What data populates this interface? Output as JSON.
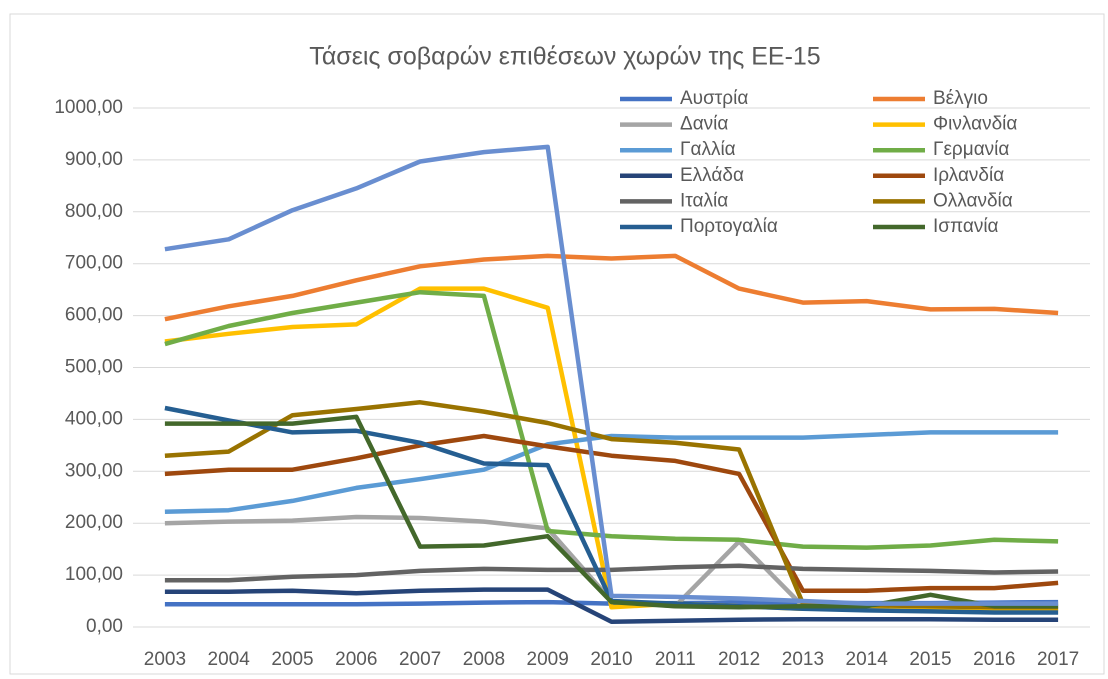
{
  "chart_data": {
    "type": "line",
    "title": "Τάσεις σοβαρών επιθέσεων χωρών της ΕΕ-15",
    "categories": [
      "2003",
      "2004",
      "2005",
      "2006",
      "2007",
      "2008",
      "2009",
      "2010",
      "2011",
      "2012",
      "2013",
      "2014",
      "2015",
      "2016",
      "2017"
    ],
    "ylim": [
      0,
      1000
    ],
    "yticks": [
      {
        "value": 0,
        "label": "0,00"
      },
      {
        "value": 100,
        "label": "100,00"
      },
      {
        "value": 200,
        "label": "200,00"
      },
      {
        "value": 300,
        "label": "300,00"
      },
      {
        "value": 400,
        "label": "400,00"
      },
      {
        "value": 500,
        "label": "500,00"
      },
      {
        "value": 600,
        "label": "600,00"
      },
      {
        "value": 700,
        "label": "700,00"
      },
      {
        "value": 800,
        "label": "800,00"
      },
      {
        "value": 900,
        "label": "900,00"
      },
      {
        "value": 1000,
        "label": "1000,00"
      }
    ],
    "grid": true,
    "series": [
      {
        "name": "Αυστρία",
        "color": "#4472c4",
        "values": [
          44,
          44,
          44,
          44,
          45,
          47,
          48,
          45,
          46,
          47,
          46,
          46,
          46,
          47,
          48
        ]
      },
      {
        "name": "Βέλγιο",
        "color": "#ed7d31",
        "values": [
          593,
          618,
          638,
          668,
          695,
          708,
          715,
          710,
          715,
          652,
          625,
          628,
          612,
          613,
          605
        ]
      },
      {
        "name": "Δανία",
        "color": "#a5a5a5",
        "values": [
          200,
          203,
          205,
          212,
          210,
          203,
          190,
          50,
          40,
          165,
          40,
          38,
          38,
          35,
          35
        ]
      },
      {
        "name": "Φινλανδία",
        "color": "#ffc000",
        "values": [
          550,
          565,
          578,
          583,
          652,
          652,
          615,
          38,
          45,
          40,
          35,
          35,
          32,
          30,
          30
        ]
      },
      {
        "name": "Γαλλία",
        "color": "#5b9bd5",
        "values": [
          222,
          225,
          243,
          268,
          285,
          303,
          352,
          368,
          365,
          365,
          365,
          370,
          375,
          375,
          375
        ]
      },
      {
        "name": "Γερμανία",
        "color": "#70ad47",
        "values": [
          545,
          580,
          605,
          625,
          645,
          638,
          185,
          175,
          170,
          168,
          155,
          153,
          157,
          168,
          165
        ]
      },
      {
        "name": "Ελλάδα",
        "color": "#264478",
        "values": [
          68,
          68,
          70,
          65,
          70,
          72,
          72,
          10,
          12,
          14,
          15,
          15,
          15,
          14,
          14
        ]
      },
      {
        "name": "Ιρλανδία",
        "color": "#9e480e",
        "values": [
          295,
          303,
          303,
          325,
          350,
          368,
          348,
          330,
          320,
          295,
          70,
          70,
          75,
          75,
          85
        ]
      },
      {
        "name": "Ιταλία",
        "color": "#636363",
        "values": [
          90,
          90,
          97,
          100,
          108,
          112,
          110,
          110,
          115,
          118,
          112,
          110,
          108,
          105,
          107
        ]
      },
      {
        "name": "Ολλανδία",
        "color": "#997300",
        "values": [
          330,
          338,
          408,
          420,
          433,
          415,
          393,
          362,
          355,
          342,
          45,
          42,
          40,
          38,
          38
        ]
      },
      {
        "name": "Πορτογαλία",
        "color": "#255e91",
        "values": [
          422,
          398,
          375,
          378,
          355,
          315,
          312,
          50,
          45,
          40,
          35,
          32,
          30,
          28,
          28
        ]
      },
      {
        "name": "Ισπανία",
        "color": "#43682b",
        "values": [
          392,
          392,
          392,
          405,
          155,
          157,
          175,
          48,
          40,
          38,
          40,
          40,
          62,
          40,
          40
        ]
      },
      {
        "color": "#698ed0",
        "values": [
          728,
          747,
          803,
          845,
          897,
          915,
          925,
          60,
          58,
          55,
          50,
          45,
          45,
          45,
          45
        ]
      }
    ]
  }
}
